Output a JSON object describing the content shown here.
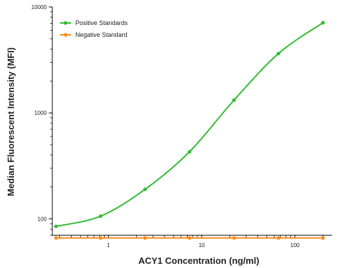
{
  "chart_data": {
    "type": "line",
    "xlabel": "ACY1 Concentration (ng/ml)",
    "ylabel": "Median Fluorescent Intensity (MFI)",
    "x_scale": "log",
    "y_scale": "log",
    "xlim": [
      0.25,
      250
    ],
    "ylim": [
      70,
      10000
    ],
    "x_ticks": [
      1,
      10,
      100
    ],
    "x_tick_labels": [
      "1",
      "10",
      "100"
    ],
    "y_ticks": [
      100,
      1000,
      10000
    ],
    "y_tick_labels": [
      "100",
      "1000",
      "10000"
    ],
    "grid": false,
    "legend_position": "top-left",
    "series": [
      {
        "name": "Positive Standards",
        "color": "#33bb33",
        "x": [
          0.274,
          0.823,
          2.47,
          7.41,
          22.2,
          66.7,
          200
        ],
        "y": [
          85,
          106,
          190,
          430,
          1320,
          3640,
          7100
        ]
      },
      {
        "name": "Negative Standard",
        "color": "#ff8c1a",
        "x": [
          0.274,
          0.823,
          2.47,
          7.41,
          22.2,
          66.7,
          200
        ],
        "y": [
          66,
          66,
          66,
          66,
          66,
          66,
          66
        ]
      }
    ]
  }
}
